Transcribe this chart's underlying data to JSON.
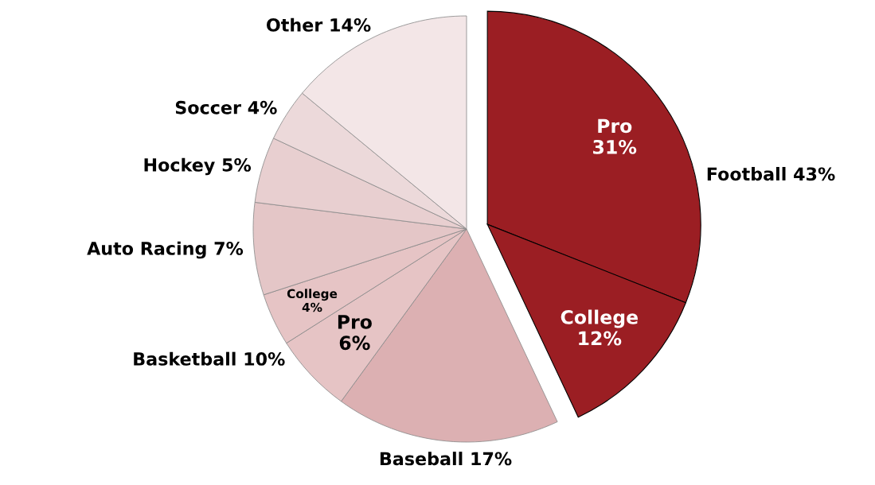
{
  "chart_data": {
    "type": "pie",
    "categories": [
      "Pro",
      "College",
      "Baseball",
      "Pro",
      "College",
      "Auto Racing",
      "Hockey",
      "Soccer",
      "Other"
    ],
    "values": [
      31,
      12,
      17,
      6,
      4,
      7,
      5,
      4,
      14
    ],
    "value_labels": [
      "31%",
      "12%",
      "17%",
      "6%",
      "4%",
      "7%",
      "5%",
      "4%",
      "14%"
    ],
    "colors": [
      "#9b1e23",
      "#9b1e23",
      "#dcb0b2",
      "#e6c4c5",
      "#e6c4c5",
      "#e4c6c7",
      "#e8cfd0",
      "#ecd9da",
      "#f3e6e7"
    ],
    "annotations": [
      "Football 43%",
      "Basketball 10%"
    ],
    "data_labels": true
  }
}
